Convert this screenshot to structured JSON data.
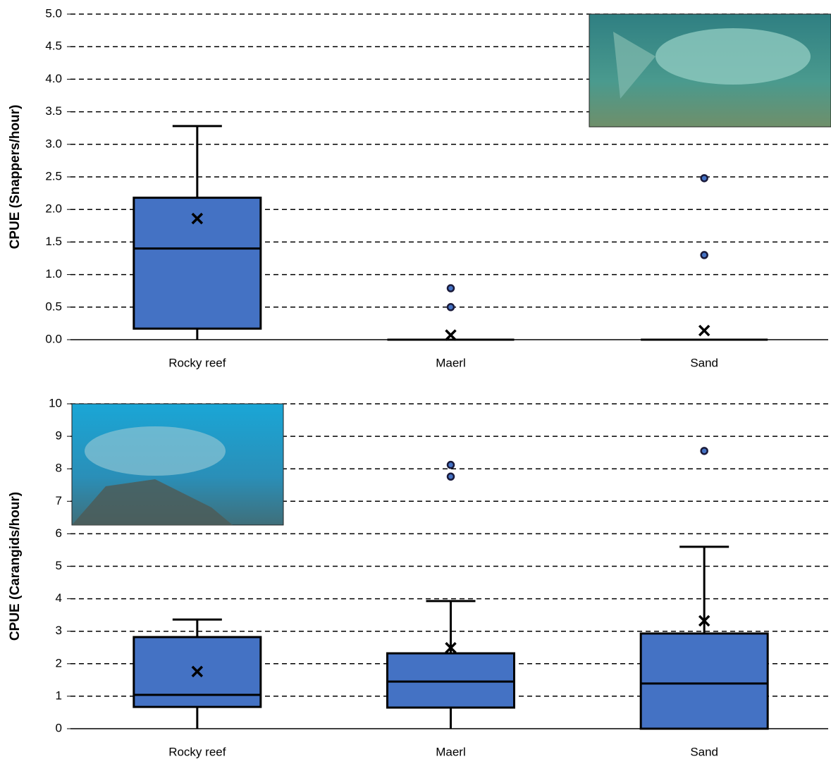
{
  "chart_data": [
    {
      "type": "box",
      "y_label": "CPUE (Snappers/hour)",
      "categories": [
        "Rocky reef",
        "Maerl",
        "Sand"
      ],
      "boxes": [
        {
          "min": 0,
          "q1": 0.17,
          "median": 1.4,
          "q3": 2.18,
          "max": 3.28,
          "mean": 1.86,
          "outliers": []
        },
        {
          "min": 0,
          "q1": 0,
          "median": 0,
          "q3": 0,
          "max": 0,
          "mean": 0.07,
          "outliers": [
            0.5,
            0.79
          ]
        },
        {
          "min": 0,
          "q1": 0,
          "median": 0,
          "q3": 0,
          "max": 0,
          "mean": 0.14,
          "outliers": [
            1.3,
            2.48
          ]
        }
      ],
      "color": "#4472c4",
      "ylim": [
        0,
        5
      ],
      "yticks": [
        {
          "value": 0,
          "label": "0.0"
        },
        0.5,
        {
          "value": 1,
          "label": "1.0"
        },
        1.5,
        {
          "value": 2,
          "label": "2.0"
        },
        2.5,
        {
          "value": 3,
          "label": "3.0"
        },
        3.5,
        {
          "value": 4,
          "label": "4.0"
        },
        4.5,
        {
          "value": 5,
          "label": "5.0"
        }
      ],
      "grid": true
    },
    {
      "type": "box",
      "y_label": "CPUE (Carangids/hour)",
      "categories": [
        "Rocky reef",
        "Maerl",
        "Sand"
      ],
      "boxes": [
        {
          "min": 0,
          "q1": 0.67,
          "median": 1.04,
          "q3": 2.82,
          "max": 3.36,
          "mean": 1.76,
          "outliers": []
        },
        {
          "min": 0,
          "q1": 0.65,
          "median": 1.45,
          "q3": 2.32,
          "max": 3.93,
          "mean": 2.49,
          "outliers": [
            7.76,
            8.12
          ]
        },
        {
          "min": 0,
          "q1": 0,
          "median": 1.39,
          "q3": 2.93,
          "max": 5.6,
          "mean": 3.32,
          "outliers": [
            8.55
          ]
        }
      ],
      "color": "#4472c4",
      "ylim": [
        0,
        10
      ],
      "yticks": [
        0,
        1,
        2,
        3,
        4,
        5,
        6,
        7,
        8,
        9,
        10
      ],
      "grid": true
    }
  ]
}
